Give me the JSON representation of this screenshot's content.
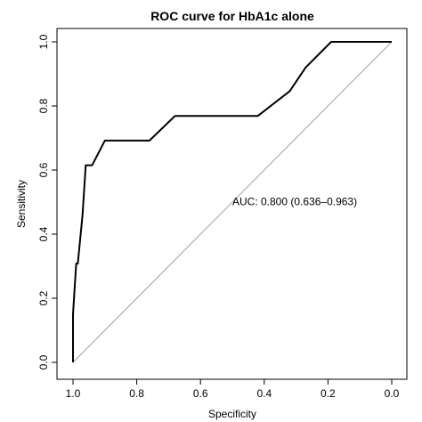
{
  "chart_data": {
    "type": "line",
    "title": "ROC curve for HbA1c alone",
    "xlabel": "Specificity",
    "ylabel": "Sensitivity",
    "xlim": [
      1.0,
      0.0
    ],
    "ylim": [
      0.0,
      1.0
    ],
    "x_reversed": true,
    "grid": false,
    "xticks": [
      1.0,
      0.8,
      0.6,
      0.4,
      0.2,
      0.0
    ],
    "xtick_labels": [
      "1.0",
      "0.8",
      "0.6",
      "0.4",
      "0.2",
      "0.0"
    ],
    "yticks": [
      0.0,
      0.2,
      0.4,
      0.6,
      0.8,
      1.0
    ],
    "ytick_labels": [
      "0.0",
      "0.2",
      "0.4",
      "0.6",
      "0.8",
      "1.0"
    ],
    "annotation": "AUC: 0.800 (0.636–0.963)",
    "annotation_pos": {
      "x": 0.5,
      "y": 0.49
    },
    "series": [
      {
        "kind": "roc",
        "color": "#000000",
        "points": [
          {
            "x": 1.0,
            "y": 0.0
          },
          {
            "x": 1.0,
            "y": 0.15
          },
          {
            "x": 0.995,
            "y": 0.23
          },
          {
            "x": 0.99,
            "y": 0.308
          },
          {
            "x": 0.985,
            "y": 0.308
          },
          {
            "x": 0.97,
            "y": 0.46
          },
          {
            "x": 0.96,
            "y": 0.615
          },
          {
            "x": 0.94,
            "y": 0.615
          },
          {
            "x": 0.9,
            "y": 0.692
          },
          {
            "x": 0.76,
            "y": 0.692
          },
          {
            "x": 0.68,
            "y": 0.769
          },
          {
            "x": 0.42,
            "y": 0.769
          },
          {
            "x": 0.32,
            "y": 0.846
          },
          {
            "x": 0.27,
            "y": 0.92
          },
          {
            "x": 0.19,
            "y": 1.0
          },
          {
            "x": 0.0,
            "y": 1.0
          }
        ]
      }
    ],
    "reference_line": {
      "from": [
        1.0,
        0.0
      ],
      "to": [
        0.0,
        1.0
      ],
      "color": "#a0a0a0"
    }
  }
}
